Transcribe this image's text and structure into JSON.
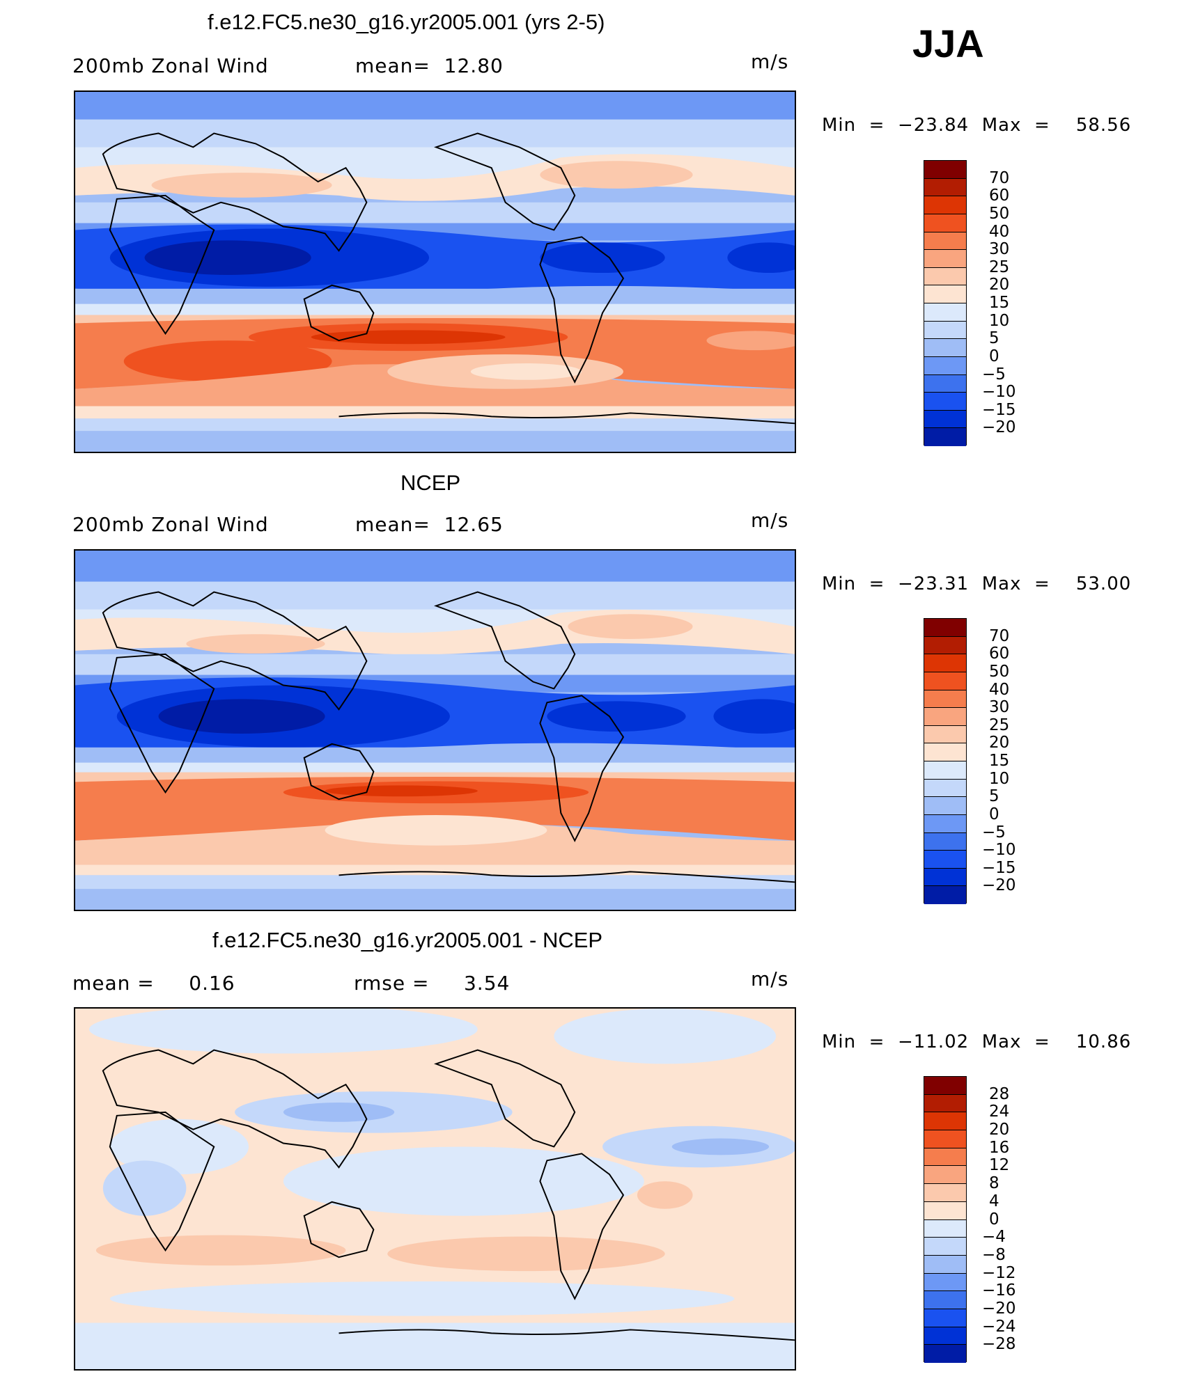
{
  "season": "JJA",
  "colors": {
    "diverging": [
      "#000066",
      "#001ca6",
      "#0032d6",
      "#1a52f0",
      "#3d72ee",
      "#6d98f5",
      "#9fbdf6",
      "#c4d8fa",
      "#dce9fb",
      "#fde4d2",
      "#fbc9ad",
      "#f9a57f",
      "#f57d4d",
      "#ef5220",
      "#dd3504",
      "#b21d02",
      "#800000"
    ]
  },
  "panels": [
    {
      "title": "f.e12.FC5.ne30_g16.yr2005.001 (yrs 2-5)",
      "left_label": "200mb Zonal Wind",
      "mid_label": "mean=  12.80",
      "units": "m/s",
      "min_label": "Min  =  −23.84  Max  =    58.56",
      "colorbar_ticks": [
        "70",
        "60",
        "50",
        "40",
        "30",
        "25",
        "20",
        "15",
        "10",
        "5",
        "0",
        "−5",
        "−10",
        "−15",
        "−20"
      ],
      "map_icon": "world-map-field-icon"
    },
    {
      "title": "NCEP",
      "left_label": "200mb Zonal Wind",
      "mid_label": "mean=  12.65",
      "units": "m/s",
      "min_label": "Min  =  −23.31  Max  =    53.00",
      "colorbar_ticks": [
        "70",
        "60",
        "50",
        "40",
        "30",
        "25",
        "20",
        "15",
        "10",
        "5",
        "0",
        "−5",
        "−10",
        "−15",
        "−20"
      ],
      "map_icon": "world-map-field-icon"
    },
    {
      "title": "f.e12.FC5.ne30_g16.yr2005.001 - NCEP",
      "left_label": "mean =     0.16",
      "mid_label": "rmse =     3.54",
      "units": "m/s",
      "min_label": "Min  =  −11.02  Max  =    10.86",
      "colorbar_ticks": [
        "28",
        "24",
        "20",
        "16",
        "12",
        "8",
        "4",
        "0",
        "−4",
        "−8",
        "−12",
        "−16",
        "−20",
        "−24",
        "−28"
      ],
      "map_icon": "world-map-difference-icon"
    }
  ]
}
